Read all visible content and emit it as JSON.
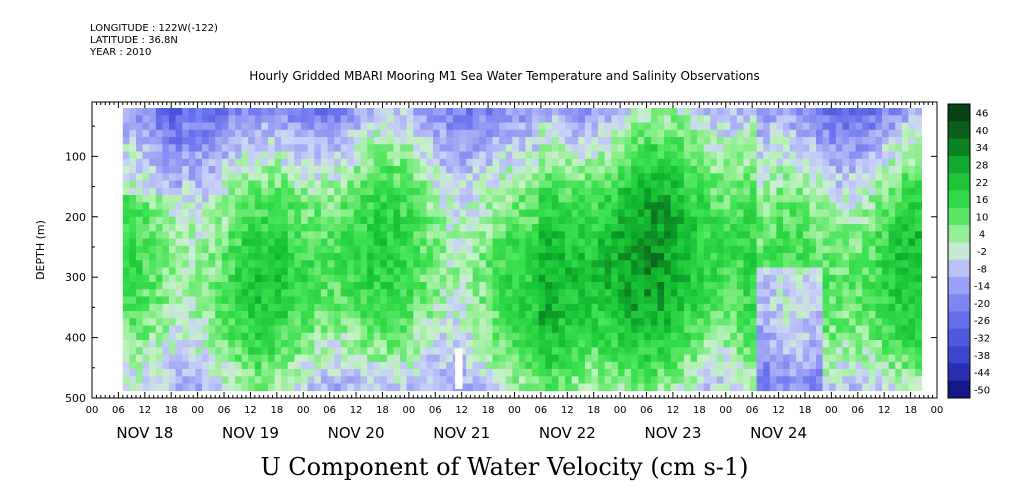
{
  "header": {
    "longitude": "LONGITUDE : 122W(-122)",
    "latitude": "LATITUDE : 36.8N",
    "year": "YEAR : 2010"
  },
  "chart_data": {
    "type": "heatmap",
    "title": "Hourly Gridded MBARI Mooring M1 Sea Water Temperature and Salinity Observations",
    "bottom_title": "U Component of Water Velocity (cm s-1)",
    "ylabel": "DEPTH (m)",
    "y_ticks": [
      100,
      200,
      300,
      400,
      500
    ],
    "ylim": [
      10,
      500
    ],
    "y_inverted": true,
    "x_hour_ticks": [
      "00",
      "06",
      "12",
      "18",
      "00",
      "06",
      "12",
      "18",
      "00",
      "06",
      "12",
      "18",
      "00",
      "06",
      "12",
      "18",
      "00",
      "06",
      "12",
      "18",
      "00",
      "06",
      "12",
      "18",
      "00",
      "06",
      "12",
      "18",
      "00",
      "06",
      "12",
      "18",
      "00"
    ],
    "x_date_labels": [
      "NOV 18",
      "NOV 19",
      "NOV 20",
      "NOV 21",
      "NOV 22",
      "NOV 23",
      "NOV 24"
    ],
    "data_start_hour": 7,
    "data_end_hour": 188,
    "data_depth_range": [
      20,
      485
    ],
    "colorbar_labels": [
      "46",
      "40",
      "34",
      "28",
      "22",
      "16",
      "10",
      "4",
      "-2",
      "-8",
      "-14",
      "-20",
      "-26",
      "-32",
      "-38",
      "-44",
      "-50"
    ],
    "colorbar_range": [
      -50,
      50
    ],
    "colors": {
      "strong_positive": "#0a4a1a",
      "positive": "#2ee24a",
      "light_positive": "#9af09a",
      "near_zero": "#c8f0c8",
      "light_negative": "#b4b8f0",
      "negative": "#8c96f0",
      "strong_negative": "#0a0a70"
    }
  }
}
